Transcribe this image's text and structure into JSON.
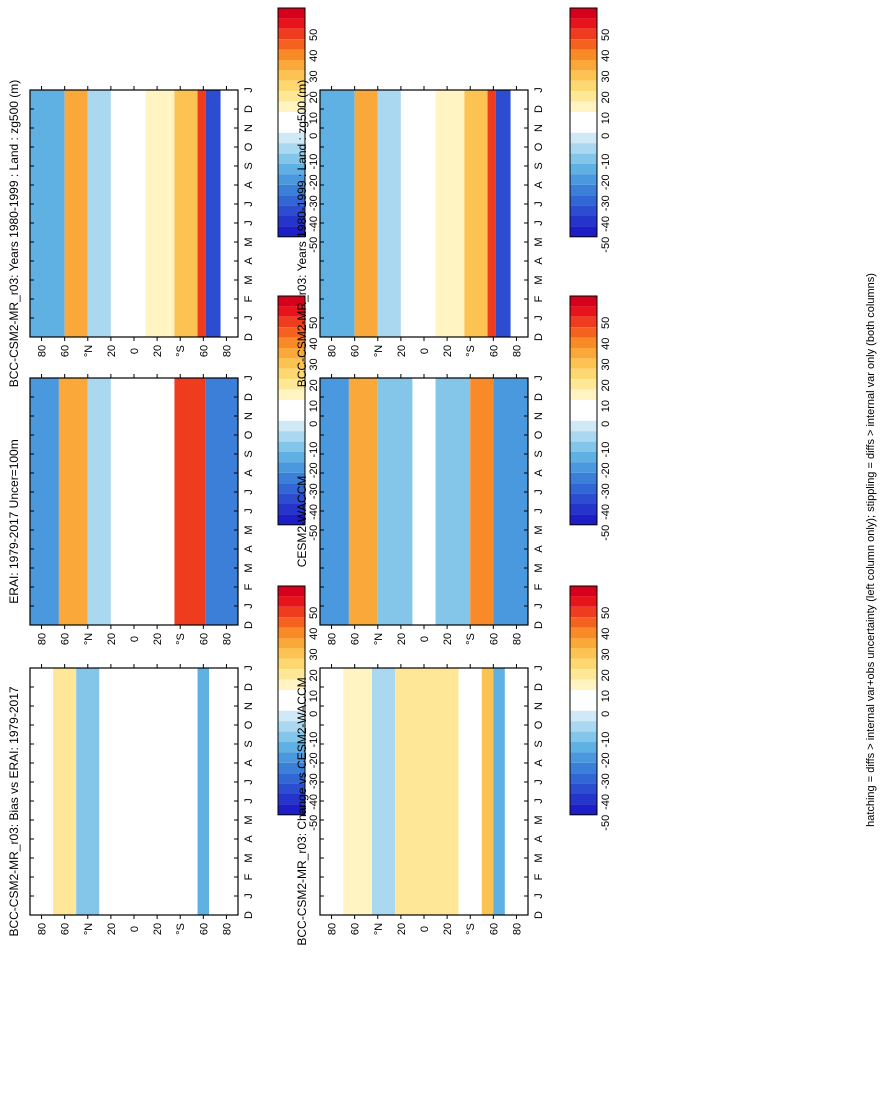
{
  "footer_note": "hatching = diffs > internal var+obs uncertainty (left column only); stippling = diffs > internal var only (both columns)",
  "chart_data": [
    {
      "type": "heatmap",
      "panel": "left-top",
      "title": "BCC-CSM2-MR_r03: Years 1980-1999 : Land : zg500 (m)",
      "time_axis": [
        "D",
        "J",
        "F",
        "M",
        "A",
        "M",
        "J",
        "J",
        "A",
        "S",
        "O",
        "N",
        "D",
        "J"
      ],
      "lat_axis": [
        "80",
        "60",
        "°N",
        "20",
        "0",
        "20",
        "°S",
        "60",
        "80"
      ],
      "colorbar_ticks": [
        "50",
        "40",
        "30",
        "20",
        "10",
        "0",
        "-10",
        "-20",
        "-30",
        "-40",
        "-50"
      ],
      "bands": [
        {
          "lat": [
            60,
            90
          ],
          "value": -22
        },
        {
          "lat": [
            40,
            60
          ],
          "value": 28
        },
        {
          "lat": [
            20,
            40
          ],
          "value": -14
        },
        {
          "lat": [
            -10,
            20
          ],
          "value": 0
        },
        {
          "lat": [
            -35,
            -10
          ],
          "value": 6
        },
        {
          "lat": [
            -55,
            -35
          ],
          "value": 22
        },
        {
          "lat": [
            -62,
            -55
          ],
          "value": 45
        },
        {
          "lat": [
            -75,
            -62
          ],
          "value": -40
        },
        {
          "lat": [
            -90,
            -75
          ],
          "value": 0
        }
      ]
    },
    {
      "type": "heatmap",
      "panel": "left-middle",
      "title": "ERAI: 1979-2017 Uncer=100m",
      "time_axis": [
        "D",
        "J",
        "F",
        "M",
        "A",
        "M",
        "J",
        "J",
        "A",
        "S",
        "O",
        "N",
        "D",
        "J"
      ],
      "lat_axis": [
        "80",
        "60",
        "°N",
        "20",
        "0",
        "20",
        "°S",
        "60",
        "80"
      ],
      "colorbar_ticks": [
        "50",
        "40",
        "30",
        "20",
        "10",
        "0",
        "-10",
        "-20",
        "-30",
        "-40",
        "-50"
      ],
      "bands": [
        {
          "lat": [
            65,
            90
          ],
          "value": -25
        },
        {
          "lat": [
            40,
            65
          ],
          "value": 30
        },
        {
          "lat": [
            20,
            40
          ],
          "value": -12
        },
        {
          "lat": [
            -15,
            20
          ],
          "value": 0
        },
        {
          "lat": [
            -35,
            -15
          ],
          "value": 5
        },
        {
          "lat": [
            -62,
            -35
          ],
          "value": 42
        },
        {
          "lat": [
            -90,
            -62
          ],
          "value": -30
        }
      ]
    },
    {
      "type": "heatmap",
      "panel": "left-bottom",
      "title": "BCC-CSM2-MR_r03: Bias vs ERAI: 1979-2017",
      "time_axis": [
        "D",
        "J",
        "F",
        "M",
        "A",
        "M",
        "J",
        "J",
        "A",
        "S",
        "O",
        "N",
        "D",
        "J"
      ],
      "lat_axis": [
        "80",
        "60",
        "°N",
        "20",
        "0",
        "20",
        "°S",
        "60",
        "80"
      ],
      "colorbar_ticks": [
        "50",
        "40",
        "30",
        "20",
        "10",
        "0",
        "-10",
        "-20",
        "-30",
        "-40",
        "-50"
      ],
      "bands": [
        {
          "lat": [
            70,
            90
          ],
          "value": 0
        },
        {
          "lat": [
            50,
            70
          ],
          "value": 12
        },
        {
          "lat": [
            30,
            50
          ],
          "value": -15
        },
        {
          "lat": [
            -5,
            30
          ],
          "value": 0
        },
        {
          "lat": [
            -30,
            -5
          ],
          "value": 5
        },
        {
          "lat": [
            -55,
            -30
          ],
          "value": 0
        },
        {
          "lat": [
            -65,
            -55
          ],
          "value": -22
        },
        {
          "lat": [
            -90,
            -65
          ],
          "value": 0
        }
      ]
    },
    {
      "type": "heatmap",
      "panel": "right-top",
      "title": "BCC-CSM2-MR_r03: Years 1980-1999 : Land : zg500 (m)",
      "time_axis": [
        "D",
        "J",
        "F",
        "M",
        "A",
        "M",
        "J",
        "J",
        "A",
        "S",
        "O",
        "N",
        "D",
        "J"
      ],
      "lat_axis": [
        "80",
        "60",
        "°N",
        "20",
        "0",
        "20",
        "°S",
        "60",
        "80"
      ],
      "colorbar_ticks": [
        "50",
        "40",
        "30",
        "20",
        "10",
        "0",
        "-10",
        "-20",
        "-30",
        "-40",
        "-50"
      ],
      "bands": [
        {
          "lat": [
            60,
            90
          ],
          "value": -22
        },
        {
          "lat": [
            40,
            60
          ],
          "value": 28
        },
        {
          "lat": [
            20,
            40
          ],
          "value": -14
        },
        {
          "lat": [
            -10,
            20
          ],
          "value": 0
        },
        {
          "lat": [
            -35,
            -10
          ],
          "value": 6
        },
        {
          "lat": [
            -55,
            -35
          ],
          "value": 22
        },
        {
          "lat": [
            -62,
            -55
          ],
          "value": 45
        },
        {
          "lat": [
            -75,
            -62
          ],
          "value": -40
        },
        {
          "lat": [
            -90,
            -75
          ],
          "value": 0
        }
      ]
    },
    {
      "type": "heatmap",
      "panel": "right-middle",
      "title": "CESM2-WACCM",
      "time_axis": [
        "D",
        "J",
        "F",
        "M",
        "A",
        "M",
        "J",
        "J",
        "A",
        "S",
        "O",
        "N",
        "D",
        "J"
      ],
      "lat_axis": [
        "80",
        "60",
        "°N",
        "20",
        "0",
        "20",
        "°S",
        "60",
        "80"
      ],
      "colorbar_ticks": [
        "50",
        "40",
        "30",
        "20",
        "10",
        "0",
        "-10",
        "-20",
        "-30",
        "-40",
        "-50"
      ],
      "bands": [
        {
          "lat": [
            65,
            90
          ],
          "value": -28
        },
        {
          "lat": [
            40,
            65
          ],
          "value": 26
        },
        {
          "lat": [
            10,
            40
          ],
          "value": -18
        },
        {
          "lat": [
            -10,
            10
          ],
          "value": 0
        },
        {
          "lat": [
            -40,
            -10
          ],
          "value": -15
        },
        {
          "lat": [
            -60,
            -40
          ],
          "value": 35
        },
        {
          "lat": [
            -90,
            -60
          ],
          "value": -25
        }
      ]
    },
    {
      "type": "heatmap",
      "panel": "right-bottom",
      "title": "BCC-CSM2-MR_r03: Change vs CESM2-WACCM",
      "time_axis": [
        "D",
        "J",
        "F",
        "M",
        "A",
        "M",
        "J",
        "J",
        "A",
        "S",
        "O",
        "N",
        "D",
        "J"
      ],
      "lat_axis": [
        "80",
        "60",
        "°N",
        "20",
        "0",
        "20",
        "°S",
        "60",
        "80"
      ],
      "colorbar_ticks": [
        "50",
        "40",
        "30",
        "20",
        "10",
        "0",
        "-10",
        "-20",
        "-30",
        "-40",
        "-50"
      ],
      "bands": [
        {
          "lat": [
            70,
            90
          ],
          "value": 0
        },
        {
          "lat": [
            45,
            70
          ],
          "value": 8
        },
        {
          "lat": [
            25,
            45
          ],
          "value": -10
        },
        {
          "lat": [
            -30,
            25
          ],
          "value": 12
        },
        {
          "lat": [
            -50,
            -30
          ],
          "value": 0
        },
        {
          "lat": [
            -60,
            -50
          ],
          "value": 25
        },
        {
          "lat": [
            -70,
            -60
          ],
          "value": -20
        },
        {
          "lat": [
            -90,
            -70
          ],
          "value": 0
        }
      ]
    }
  ]
}
